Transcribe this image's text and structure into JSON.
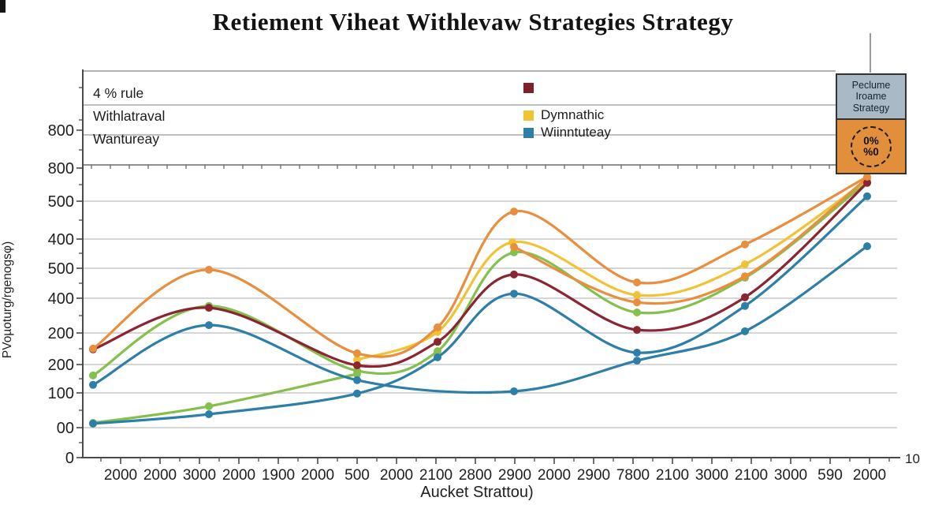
{
  "title": "Retiement Viheat Withlevaw Strategies Strategy",
  "legend_panel": {
    "left_lines": [
      "4 % rule",
      "Withlatraval",
      "Wantureay"
    ],
    "items": [
      {
        "label": "",
        "color": "#7E1F2B"
      },
      {
        "label": "Dymnathic",
        "color": "#F2C235"
      },
      {
        "label": "Wiinntuteay",
        "color": "#2E7FA8"
      }
    ]
  },
  "strategy_box": {
    "header_lines": [
      "Peclume",
      "Iroame",
      "Strategy"
    ],
    "badge_line1": "0%",
    "badge_line2": "%0",
    "header_bg": "#A9BAC6",
    "body_bg": "#E28F3C",
    "border_color": "#333333"
  },
  "chart_data": {
    "type": "line",
    "title": "Retiement Viheat Withlevaw Strategies Strategy",
    "x_axis_label": "Aucket Strattou)",
    "x_axis_end_label": "10",
    "y_axis_label": "PVoµoturg/rgenogsφ)",
    "ylim": [
      0,
      800
    ],
    "grid": true,
    "legend_position": "top",
    "y_ticks": [
      {
        "label": "800",
        "py": 165
      },
      {
        "label": "800",
        "py": 213
      },
      {
        "label": "500",
        "py": 255
      },
      {
        "label": "400",
        "py": 303
      },
      {
        "label": "500",
        "py": 340
      },
      {
        "label": "400",
        "py": 378
      },
      {
        "label": "200",
        "py": 422
      },
      {
        "label": "200",
        "py": 462
      },
      {
        "label": "100",
        "py": 498
      },
      {
        "label": "00",
        "py": 542
      },
      {
        "label": "0",
        "py": 580
      }
    ],
    "x_tick_labels": [
      "2000",
      "2000",
      "3000",
      "2000",
      "1900",
      "2000",
      "500",
      "2000",
      "2100",
      "2800",
      "2900",
      "2000",
      "2900",
      "7800",
      "2100",
      "3000",
      "2100",
      "3000",
      "590",
      "2000"
    ],
    "series": [
      {
        "name": "green-lower",
        "color": "#85C04D",
        "points": [
          [
            118,
            96
          ],
          [
            265,
            142
          ],
          [
            453,
            231
          ]
        ]
      },
      {
        "name": "green-upper",
        "color": "#85C04D",
        "points": [
          [
            118,
            227
          ],
          [
            265,
            419
          ],
          [
            453,
            240
          ],
          [
            555,
            294
          ],
          [
            652,
            567
          ],
          [
            808,
            401
          ],
          [
            945,
            497
          ],
          [
            1100,
            763
          ]
        ]
      },
      {
        "name": "Dymnathic",
        "color": "#F2C235",
        "points": [
          [
            453,
            270
          ],
          [
            555,
            347
          ],
          [
            650,
            595
          ],
          [
            808,
            449
          ],
          [
            945,
            534
          ],
          [
            1100,
            767
          ]
        ]
      },
      {
        "name": "orange-secondary",
        "color": "#E78F3E",
        "points": [
          [
            652,
            582
          ],
          [
            808,
            429
          ],
          [
            945,
            501
          ],
          [
            1100,
            772
          ]
        ]
      },
      {
        "name": "maroon",
        "color": "#8A2531",
        "points": [
          [
            118,
            299
          ],
          [
            265,
            414
          ],
          [
            453,
            255
          ],
          [
            555,
            320
          ],
          [
            652,
            506
          ],
          [
            808,
            353
          ],
          [
            945,
            443
          ],
          [
            1100,
            759
          ]
        ]
      },
      {
        "name": "orange-primary",
        "color": "#E78F3E",
        "points": [
          [
            118,
            301
          ],
          [
            265,
            519
          ],
          [
            453,
            288
          ],
          [
            555,
            360
          ],
          [
            652,
            680
          ],
          [
            808,
            484
          ],
          [
            945,
            589
          ],
          [
            1100,
            776
          ]
        ]
      },
      {
        "name": "blue-lower",
        "color": "#2E7FA8",
        "points": [
          [
            118,
            201
          ],
          [
            265,
            366
          ],
          [
            453,
            214
          ],
          [
            652,
            183
          ],
          [
            808,
            268
          ],
          [
            945,
            349
          ],
          [
            1100,
            584
          ]
        ]
      },
      {
        "name": "Wiinntuteay",
        "color": "#2E7FA8",
        "points": [
          [
            118,
            94
          ],
          [
            265,
            120
          ],
          [
            453,
            177
          ],
          [
            555,
            277
          ],
          [
            652,
            453
          ],
          [
            808,
            290
          ],
          [
            945,
            419
          ],
          [
            1100,
            722
          ]
        ]
      }
    ]
  }
}
